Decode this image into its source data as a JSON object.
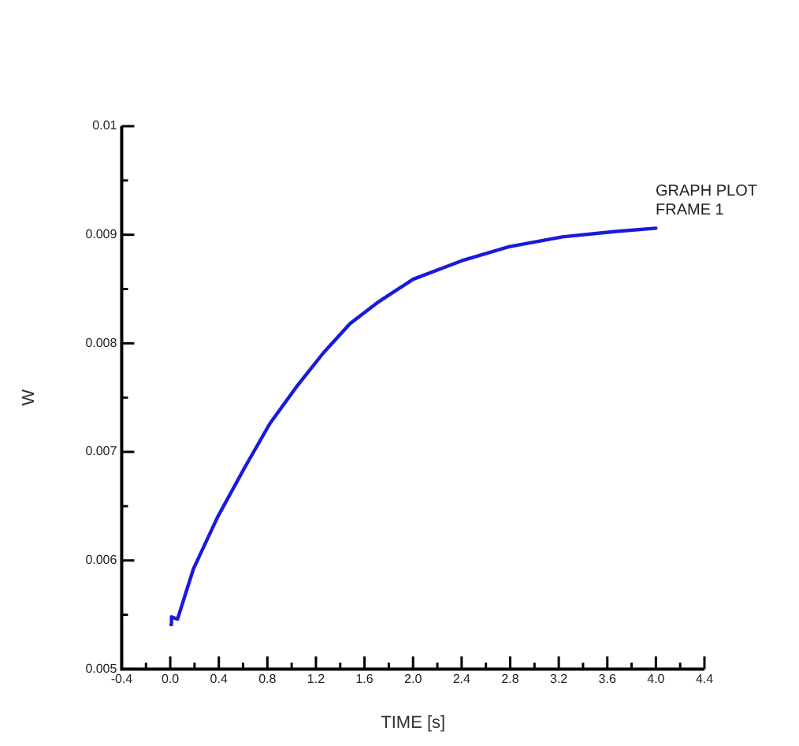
{
  "chart_data": {
    "type": "line",
    "xlabel": "TIME [s]",
    "ylabel": "W",
    "annotations": [
      "GRAPH PLOT\nFRAME 1"
    ],
    "series": [
      {
        "color": "#1a1adc",
        "x": [
          0.006,
          0.01,
          0.06,
          0.19,
          0.39,
          0.61,
          0.82,
          1.04,
          1.26,
          1.48,
          1.7,
          2.0,
          2.4,
          2.79,
          3.23,
          3.67,
          4.0
        ],
        "values": [
          0.00541,
          0.00548,
          0.00546,
          0.00592,
          0.0064,
          0.00685,
          0.00726,
          0.0076,
          0.00791,
          0.00818,
          0.00837,
          0.00859,
          0.00876,
          0.00889,
          0.00898,
          0.00903,
          0.00906
        ]
      }
    ],
    "xlim": [
      -0.4,
      4.4
    ],
    "xticks": [
      {
        "value": -0.4,
        "label": "-0.4"
      },
      {
        "value": -0.2,
        "label": null
      },
      {
        "value": 0,
        "label": "0.0"
      },
      {
        "value": 0.2,
        "label": null
      },
      {
        "value": 0.4,
        "label": "0.4"
      },
      {
        "value": 0.6,
        "label": null
      },
      {
        "value": 0.8,
        "label": "0.8"
      },
      {
        "value": 1.0,
        "label": null
      },
      {
        "value": 1.2,
        "label": "1.2"
      },
      {
        "value": 1.4,
        "label": null
      },
      {
        "value": 1.6,
        "label": "1.6"
      },
      {
        "value": 1.8,
        "label": null
      },
      {
        "value": 2.0,
        "label": "2.0"
      },
      {
        "value": 2.2,
        "label": null
      },
      {
        "value": 2.4,
        "label": "2.4"
      },
      {
        "value": 2.6,
        "label": null
      },
      {
        "value": 2.8,
        "label": "2.8"
      },
      {
        "value": 3.0,
        "label": null
      },
      {
        "value": 3.2,
        "label": "3.2"
      },
      {
        "value": 3.4,
        "label": null
      },
      {
        "value": 3.6,
        "label": "3.6"
      },
      {
        "value": 3.8,
        "label": null
      },
      {
        "value": 4.0,
        "label": "4.0"
      },
      {
        "value": 4.2,
        "label": null
      },
      {
        "value": 4.4,
        "label": "4.4"
      }
    ],
    "ylim": [
      0.005,
      0.01
    ],
    "yticks": [
      0.005,
      {
        "value": 0.0055,
        "label": null
      },
      0.006,
      {
        "value": 0.0065,
        "label": null
      },
      0.007,
      {
        "value": 0.0075,
        "label": null
      },
      0.008,
      {
        "value": 0.0085,
        "label": null
      },
      0.009,
      {
        "value": 0.0095,
        "label": null
      },
      0.01
    ],
    "grid": false,
    "legend": false,
    "marker": "none",
    "line_style": "solid"
  }
}
